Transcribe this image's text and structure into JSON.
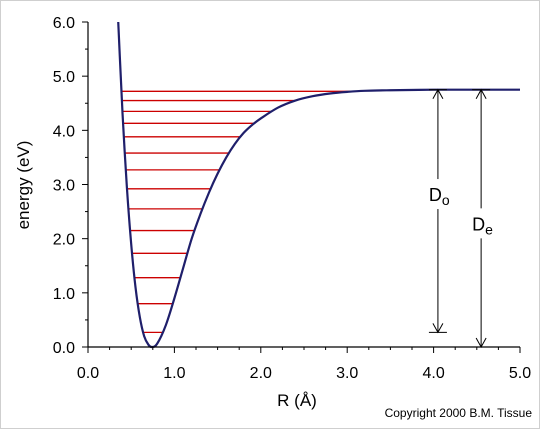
{
  "chart_data": {
    "type": "line",
    "title": "",
    "xlabel": "R (Å)",
    "ylabel": "energy (eV)",
    "xlim": [
      0.0,
      5.0
    ],
    "ylim": [
      0.0,
      6.0
    ],
    "x_ticks": [
      "0.0",
      "1.0",
      "2.0",
      "3.0",
      "4.0",
      "5.0"
    ],
    "y_ticks": [
      "0.0",
      "1.0",
      "2.0",
      "3.0",
      "4.0",
      "5.0",
      "6.0"
    ],
    "grid": false,
    "legend": "none",
    "series": [
      {
        "color": "#1f1f6b",
        "x": [
          0.35,
          0.37,
          0.4,
          0.45,
          0.5,
          0.55,
          0.6,
          0.65,
          0.7,
          0.74,
          0.8,
          0.9,
          1.0,
          1.1,
          1.2,
          1.3,
          1.4,
          1.5,
          1.6,
          1.7,
          1.8,
          1.9,
          2.0,
          2.2,
          2.4,
          2.6,
          2.8,
          3.0,
          3.2,
          3.5,
          4.0,
          4.5,
          5.0
        ],
        "y": [
          6.0,
          5.3,
          4.3,
          2.95,
          1.9,
          1.1,
          0.55,
          0.2,
          0.04,
          0.0,
          0.06,
          0.4,
          0.9,
          1.45,
          2.0,
          2.45,
          2.85,
          3.2,
          3.5,
          3.75,
          3.95,
          4.1,
          4.22,
          4.42,
          4.55,
          4.63,
          4.68,
          4.71,
          4.73,
          4.74,
          4.75,
          4.75,
          4.75
        ]
      }
    ],
    "energy_levels": {
      "color": "#cc0000",
      "y": [
        0.27,
        0.8,
        1.28,
        1.73,
        2.15,
        2.55,
        2.92,
        3.27,
        3.58,
        3.88,
        4.13,
        4.35,
        4.55,
        4.72
      ]
    },
    "annotations": {
      "D0": {
        "label": "D",
        "subscript": "o",
        "x": 4.05,
        "y_range": [
          0.27,
          4.75
        ]
      },
      "De": {
        "label": "D",
        "subscript": "e",
        "x": 4.55,
        "y_range": [
          0.0,
          4.75
        ]
      }
    }
  },
  "copyright": "Copyright 2000 B.M. Tissue"
}
